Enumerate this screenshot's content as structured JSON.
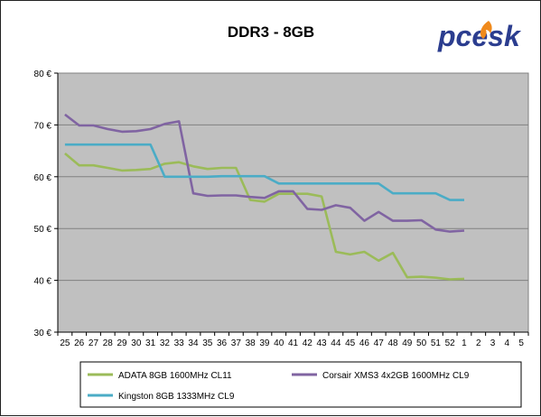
{
  "chart_data": {
    "type": "line",
    "title": "DDR3 - 8GB",
    "logo": "pcesk",
    "xlabel": "",
    "ylabel": "",
    "categories": [
      "25",
      "26",
      "27",
      "28",
      "29",
      "30",
      "31",
      "32",
      "33",
      "34",
      "35",
      "36",
      "37",
      "38",
      "39",
      "40",
      "41",
      "42",
      "43",
      "44",
      "45",
      "46",
      "47",
      "48",
      "49",
      "50",
      "51",
      "52",
      "1",
      "2",
      "3",
      "4",
      "5"
    ],
    "ylim": [
      30,
      80
    ],
    "yticks": [
      30,
      40,
      50,
      60,
      70,
      80
    ],
    "ytick_labels": [
      "30 €",
      "40 €",
      "50 €",
      "60 €",
      "70 €",
      "80 €"
    ],
    "grid": true,
    "legend_position": "bottom",
    "series": [
      {
        "name": "ADATA 8GB 1600MHz CL11",
        "color": "#9bbb59",
        "values": [
          64.5,
          62.2,
          62.2,
          61.7,
          61.2,
          61.3,
          61.5,
          62.5,
          62.8,
          62.0,
          61.5,
          61.7,
          61.7,
          55.5,
          55.2,
          56.7,
          56.7,
          56.7,
          56.2,
          45.5,
          45.0,
          45.5,
          43.8,
          45.3,
          40.6,
          40.7,
          40.5,
          40.2,
          40.3,
          null,
          null,
          null,
          null
        ]
      },
      {
        "name": "Corsair XMS3 4x2GB 1600MHz CL9",
        "color": "#8064a2",
        "values": [
          72.0,
          69.9,
          69.9,
          69.2,
          68.7,
          68.8,
          69.2,
          70.2,
          70.7,
          56.8,
          56.3,
          56.4,
          56.4,
          56.1,
          55.9,
          57.2,
          57.2,
          53.8,
          53.6,
          54.5,
          54.0,
          51.5,
          53.2,
          51.5,
          51.5,
          51.6,
          49.8,
          49.4,
          49.6,
          null,
          null,
          null,
          null
        ]
      },
      {
        "name": "Kingston 8GB 1333MHz CL9",
        "color": "#4bacc6",
        "values": [
          66.2,
          66.2,
          66.2,
          66.2,
          66.2,
          66.2,
          66.2,
          60.0,
          60.0,
          60.0,
          60.0,
          60.1,
          60.1,
          60.1,
          60.1,
          58.7,
          58.7,
          58.7,
          58.7,
          58.7,
          58.7,
          58.7,
          58.7,
          56.8,
          56.8,
          56.8,
          56.8,
          55.5,
          55.5,
          null,
          null,
          null,
          null
        ]
      }
    ]
  }
}
